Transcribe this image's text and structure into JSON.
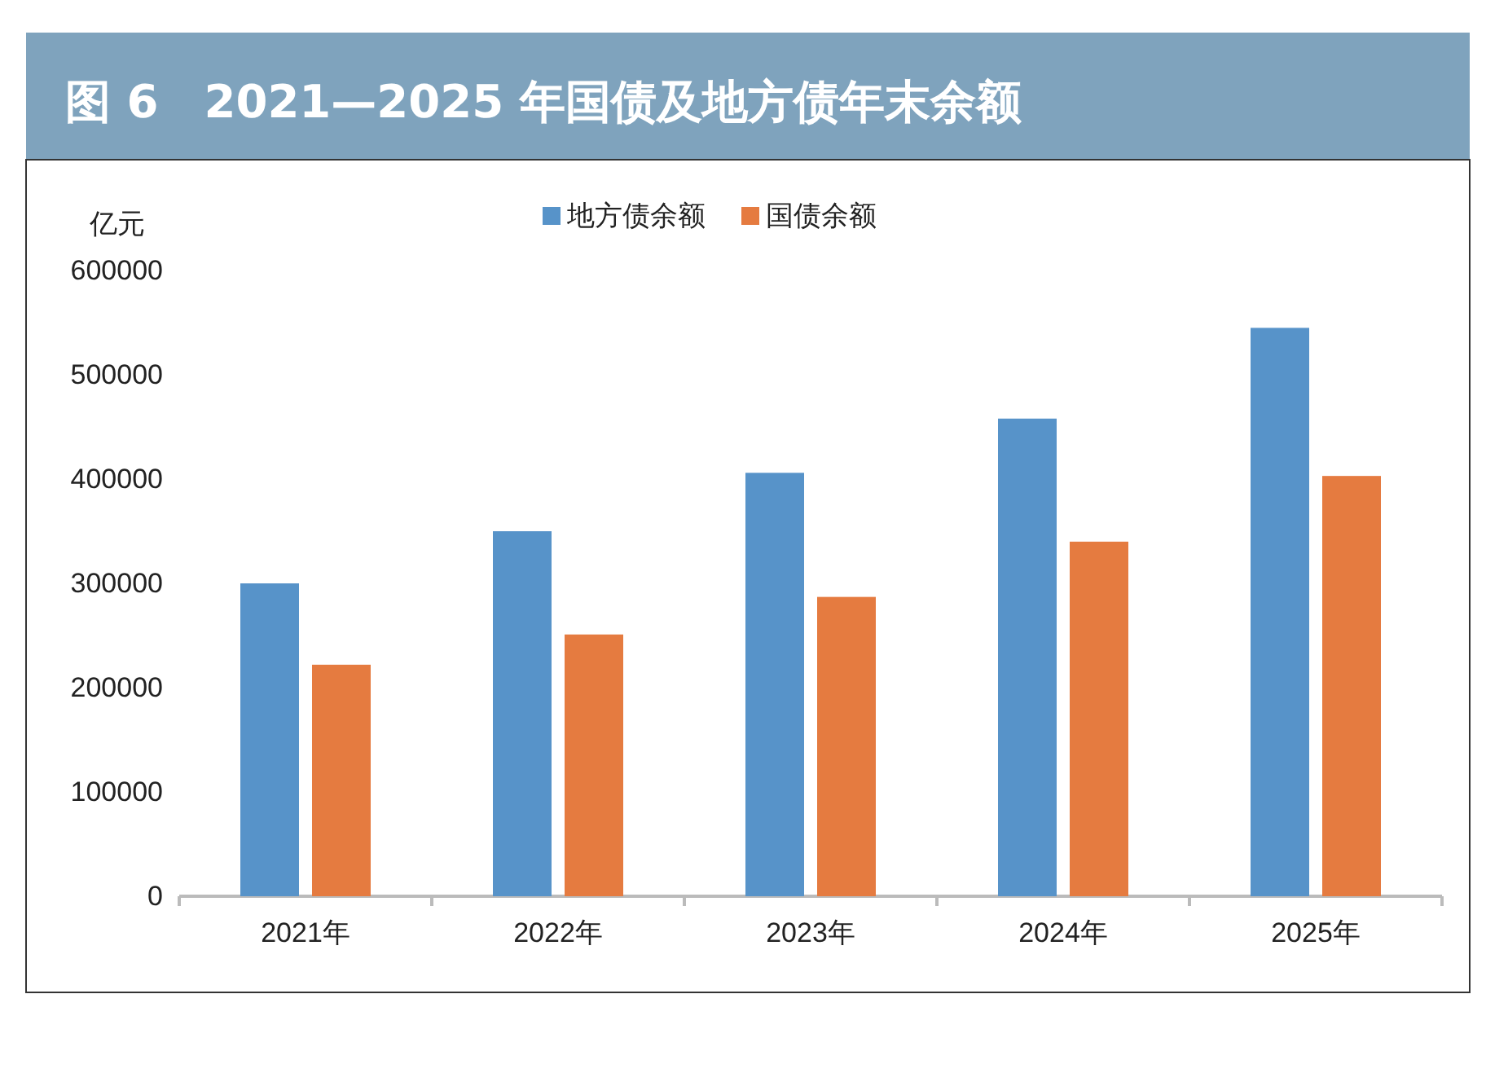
{
  "chart_data": {
    "type": "bar",
    "title": "图 6　2021—2025 年国债及地方债年末余额",
    "ylabel": "亿元",
    "categories": [
      "2021年",
      "2022年",
      "2023年",
      "2024年",
      "2025年"
    ],
    "series": [
      {
        "name": "地方债余额",
        "color": "#5793c9",
        "values": [
          300000,
          350000,
          406000,
          458000,
          545000
        ]
      },
      {
        "name": "国债余额",
        "color": "#e57b40",
        "values": [
          222000,
          251000,
          287000,
          340000,
          403000
        ]
      }
    ],
    "ylim": [
      0,
      600000
    ],
    "yticks": [
      0,
      100000,
      200000,
      300000,
      400000,
      500000,
      600000
    ],
    "grid": false,
    "legend": "top"
  }
}
